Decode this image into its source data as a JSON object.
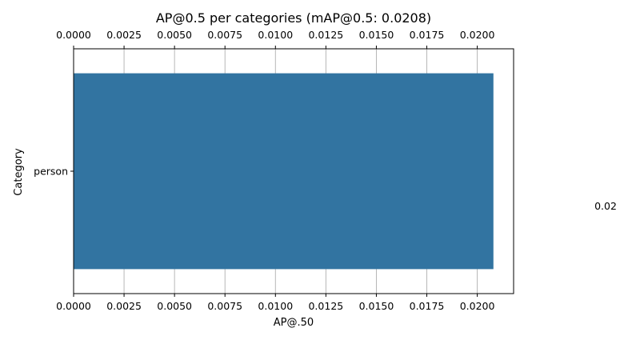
{
  "chart_data": {
    "type": "bar",
    "orientation": "horizontal",
    "title": "AP@0.5 per categories (mAP@0.5: 0.0208)",
    "xlabel": "AP@.50",
    "ylabel": "Category",
    "categories": [
      "person"
    ],
    "values": [
      0.0208
    ],
    "data_labels": [
      "0.02"
    ],
    "xlim": [
      0,
      0.0218
    ],
    "xticks": [
      0.0,
      0.0025,
      0.005,
      0.0075,
      0.01,
      0.0125,
      0.015,
      0.0175,
      0.02
    ],
    "xtick_labels": [
      "0.0000",
      "0.0025",
      "0.0050",
      "0.0075",
      "0.0100",
      "0.0125",
      "0.0150",
      "0.0175",
      "0.0200"
    ],
    "ticks_on_top_and_bottom": true,
    "grid": "x",
    "bar_color": "#3274a1",
    "grid_color": "#b0b0b0"
  }
}
